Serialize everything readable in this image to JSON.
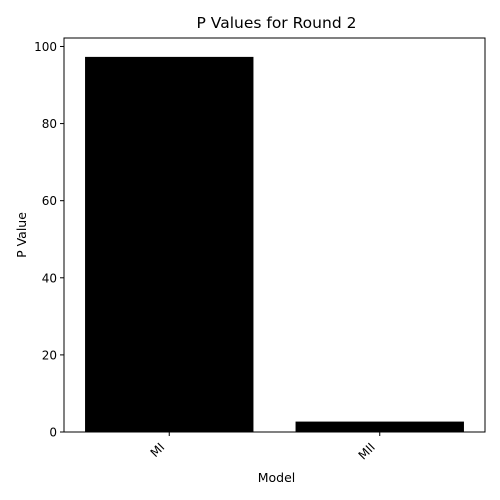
{
  "chart_data": {
    "type": "bar",
    "title": "P Values for Round 2",
    "xlabel": "Model",
    "ylabel": "P Value",
    "categories": [
      "MI",
      "MII"
    ],
    "values": [
      97.3,
      2.7
    ],
    "ylim": [
      0,
      102.2
    ],
    "yticks": [
      0,
      20,
      40,
      60,
      80,
      100
    ],
    "bar_color": "#000000",
    "grid": false,
    "legend": "none"
  }
}
